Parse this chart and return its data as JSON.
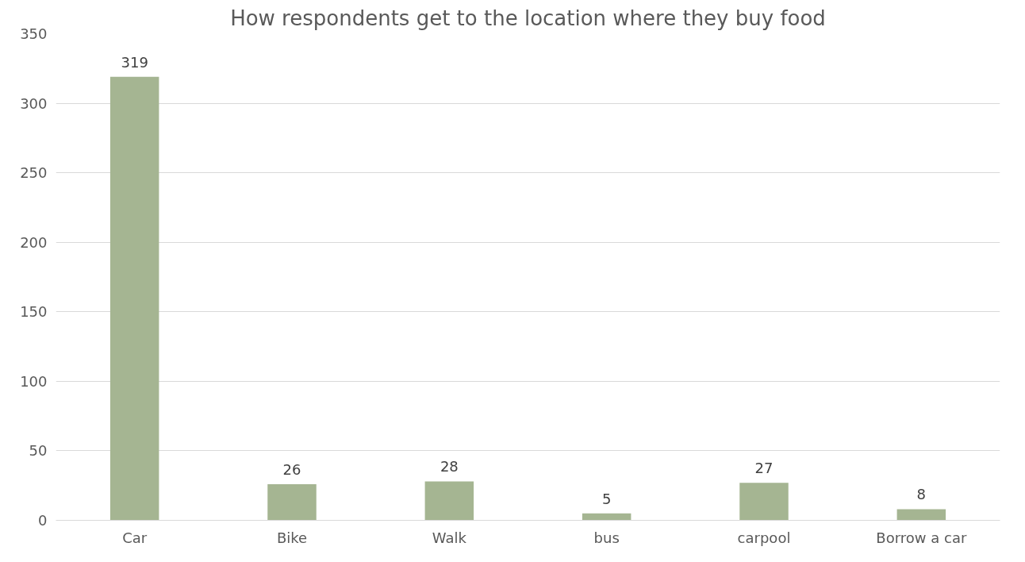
{
  "chart_data": {
    "type": "bar",
    "title": "How respondents get to the location where they buy food",
    "categories": [
      "Car",
      "Bike",
      "Walk",
      "bus",
      "carpool",
      "Borrow a car"
    ],
    "values": [
      319,
      26,
      28,
      5,
      27,
      8
    ],
    "color": "#a5b592",
    "ylim": [
      0,
      350
    ],
    "yticks": [
      0,
      50,
      100,
      150,
      200,
      250,
      300,
      350
    ],
    "grid": "y",
    "data_labels": true
  }
}
